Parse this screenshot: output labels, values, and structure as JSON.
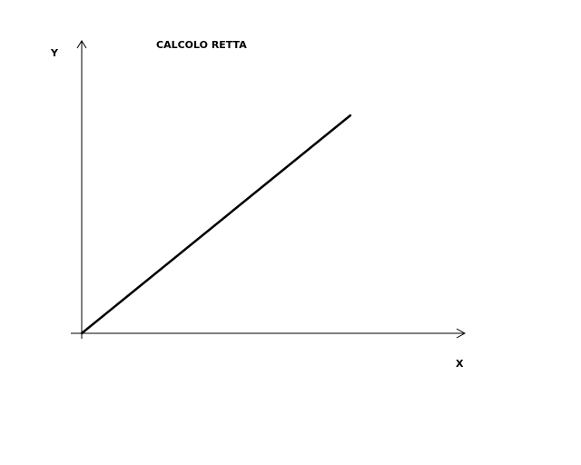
{
  "chart_data": {
    "type": "line",
    "title": "CALCOLO RETTA",
    "xlabel": "X",
    "ylabel": "Y",
    "xlim": [
      0,
      10
    ],
    "ylim": [
      0,
      10
    ],
    "grid": false,
    "series": [
      {
        "x": [
          0,
          7.08
        ],
        "y": [
          0,
          7.36
        ]
      }
    ],
    "colors": {
      "line": "#000000",
      "axis": "#000000"
    }
  }
}
